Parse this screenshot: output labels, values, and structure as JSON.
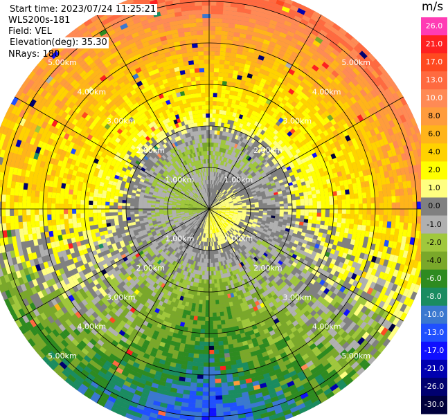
{
  "header": {
    "start_time": "Start time: 2023/07/24 11:25:21",
    "instrument": "WLS200s-181",
    "field": "Field: VEL",
    "elevation": "Elevation(deg): 35.30",
    "nrays": "NRays: 180"
  },
  "colorbar": {
    "unit": "m/s",
    "ticks": [
      "26.0",
      "21.0",
      "17.0",
      "13.0",
      "10.0",
      "8.0",
      "6.0",
      "4.0",
      "2.0",
      "1.0",
      "0.0",
      "-1.0",
      "-2.0",
      "-4.0",
      "-6.0",
      "-8.0",
      "-10.0",
      "-13.0",
      "-17.0",
      "-21.0",
      "-26.0",
      "-30.0"
    ],
    "colors": [
      "#ff3cb4",
      "#ff2020",
      "#ff4a20",
      "#ff6a40",
      "#ff8a55",
      "#ff9c3c",
      "#ffb41a",
      "#ffd200",
      "#ffff00",
      "#ffff80",
      "#808080",
      "#b0b0b0",
      "#a0c83c",
      "#7aa82a",
      "#2e8b20",
      "#1a8c60",
      "#3a78d0",
      "#2050ff",
      "#1010ff",
      "#0000b0",
      "#000070",
      "#00003c"
    ],
    "tick_text_colors": [
      "#ffffff",
      "#ffffff",
      "#ffffff",
      "#ffffff",
      "#ffffff",
      "#000000",
      "#000000",
      "#000000",
      "#000000",
      "#000000",
      "#000000",
      "#000000",
      "#000000",
      "#000000",
      "#ffffff",
      "#ffffff",
      "#ffffff",
      "#ffffff",
      "#ffffff",
      "#ffffff",
      "#ffffff",
      "#ffffff"
    ]
  },
  "chart_data": {
    "type": "ppi-radar",
    "field": "VEL",
    "unit": "m/s",
    "elevation_deg": 35.3,
    "nrays": 180,
    "range_rings_km": [
      1,
      2,
      3,
      4,
      5
    ],
    "ring_labels": [
      "1.00km",
      "2.00km",
      "3.00km",
      "4.00km",
      "5.00km"
    ],
    "max_range_km": 5.4,
    "azimuth_spokes_deg": [
      0,
      30,
      60,
      90,
      120,
      150,
      180,
      210,
      240,
      270,
      300,
      330
    ],
    "color_scale_ms": [
      26.0,
      21.0,
      17.0,
      13.0,
      10.0,
      8.0,
      6.0,
      4.0,
      2.0,
      1.0,
      0.0,
      -1.0,
      -2.0,
      -4.0,
      -6.0,
      -8.0,
      -10.0,
      -13.0,
      -17.0,
      -21.0,
      -26.0,
      -30.0
    ],
    "velocity_by_range_ms": [
      {
        "range_km": 0.5,
        "north": 0.0,
        "east": 2.0,
        "south": 2.0,
        "west": -2.0
      },
      {
        "range_km": 1.5,
        "north": -2.0,
        "east": 0.0,
        "south": -1.0,
        "west": 0.0
      },
      {
        "range_km": 2.5,
        "north": 4.0,
        "east": 2.0,
        "south": -4.0,
        "west": 2.0
      },
      {
        "range_km": 3.5,
        "north": 6.0,
        "east": 4.0,
        "south": -6.0,
        "west": 4.0
      },
      {
        "range_km": 4.5,
        "north": 10.0,
        "east": 6.0,
        "south": -10.0,
        "west": 4.0
      },
      {
        "range_km": 5.2,
        "north": 17.0,
        "east": 8.0,
        "south": -13.0,
        "west": 2.0
      }
    ]
  }
}
